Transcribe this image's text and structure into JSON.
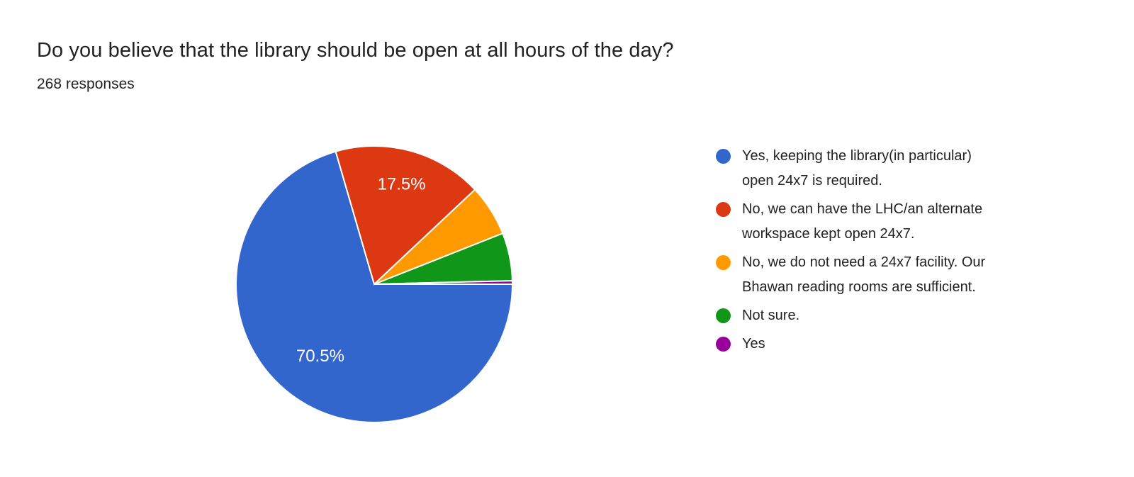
{
  "chart_data": {
    "type": "pie",
    "title": "Do you believe that the library should be open at all hours of the day?",
    "subtitle": "268 responses",
    "total_responses": 268,
    "legend_position": "right",
    "rotation_deg": 90,
    "direction": "clockwise",
    "slice_border_color": "#ffffff",
    "slices": [
      {
        "label": "Yes, keeping the library(in particular) open 24x7 is required.",
        "legend_lines": [
          "Yes, keeping the library(in particular)",
          "open 24x7 is required."
        ],
        "percent": 70.5,
        "percent_label": "70.5%",
        "color": "#3366CC"
      },
      {
        "label": "No, we can have the LHC/an alternate workspace kept open 24x7.",
        "legend_lines": [
          "No, we can have the LHC/an alternate",
          "workspace kept open 24x7."
        ],
        "percent": 17.5,
        "percent_label": "17.5%",
        "color": "#DC3912"
      },
      {
        "label": "No, we do not need a 24x7 facility. Our Bhawan reading rooms are sufficient.",
        "legend_lines": [
          "No, we do not need a 24x7 facility. Our",
          "Bhawan reading rooms are sufficient."
        ],
        "percent": 6.0,
        "percent_label": null,
        "color": "#FF9900"
      },
      {
        "label": "Not sure.",
        "legend_lines": [
          "Not sure."
        ],
        "percent": 5.6,
        "percent_label": null,
        "color": "#109618"
      },
      {
        "label": "Yes",
        "legend_lines": [
          "Yes"
        ],
        "percent": 0.4,
        "percent_label": null,
        "color": "#990099"
      }
    ]
  }
}
